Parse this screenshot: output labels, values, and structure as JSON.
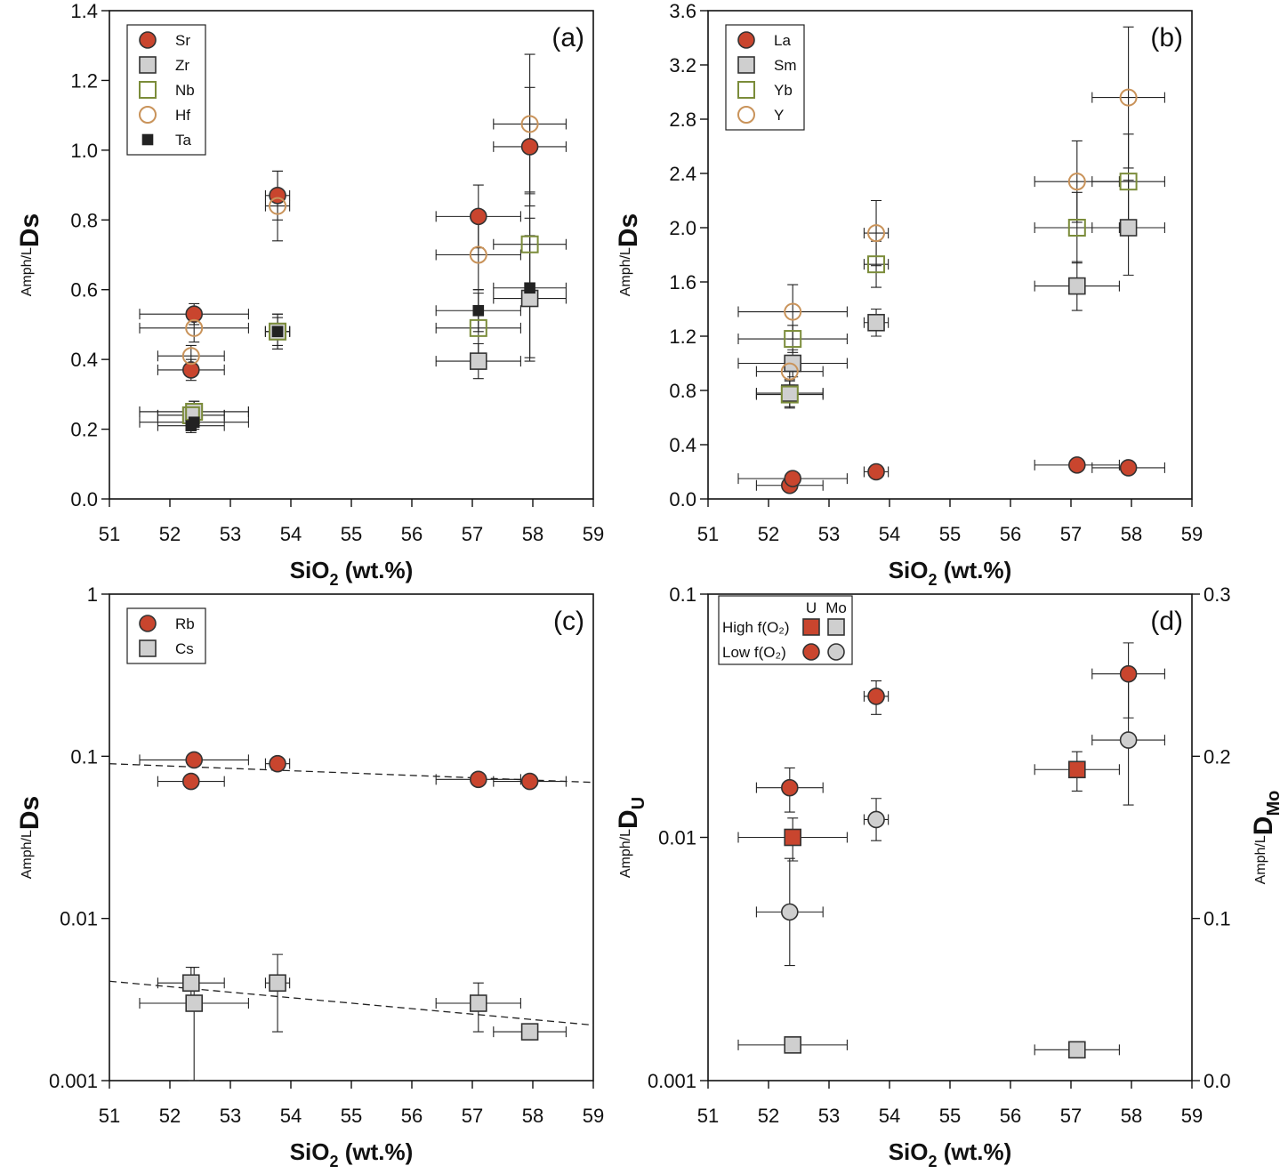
{
  "chart_data": [
    {
      "type": "scatter",
      "label": "(a)",
      "xlabel": [
        "SiO",
        "2",
        " (wt.%)"
      ],
      "ylabel": [
        "Amph/L",
        "Ds"
      ],
      "xlim": [
        51,
        59
      ],
      "xticks": [
        51,
        52,
        53,
        54,
        55,
        56,
        57,
        58,
        59
      ],
      "ylim": [
        0,
        1.4
      ],
      "yticks": [
        {
          "value": 0,
          "label": "0.0"
        },
        0.2,
        0.4,
        0.6,
        0.8,
        {
          "value": 1,
          "label": "1.0"
        },
        1.2,
        1.4
      ],
      "legend": "upper left",
      "series": [
        {
          "name": "Sr",
          "marker": "circle",
          "filled": true,
          "color": "#c9452e",
          "edgecolor": "#333333",
          "x": [
            52.35,
            52.4,
            53.78,
            57.1,
            57.95
          ],
          "values": [
            0.37,
            0.53,
            0.87,
            0.81,
            1.01
          ],
          "xerr": [
            0.55,
            0.9,
            0.2,
            0.7,
            0.6
          ],
          "yerr": [
            0.03,
            0.03,
            0.07,
            0.09,
            0.17
          ]
        },
        {
          "name": "Zr",
          "marker": "square",
          "filled": true,
          "color": "#cfcfcf",
          "edgecolor": "#333333",
          "x": [
            52.35,
            52.4,
            53.78,
            57.1,
            57.95
          ],
          "values": [
            0.24,
            0.25,
            0.48,
            0.395,
            0.575
          ],
          "xerr": [
            0.55,
            0.9,
            0.2,
            0.7,
            0.6
          ],
          "yerr": [
            0.03,
            0.03,
            0.05,
            0.05,
            0.18
          ]
        },
        {
          "name": "Nb",
          "marker": "square",
          "filled": false,
          "color": "#7b8c3a",
          "x": [
            52.35,
            52.4,
            53.78,
            57.1,
            57.95
          ],
          "values": [
            0.24,
            0.25,
            0.48,
            0.49,
            0.73
          ],
          "xerr": [
            0.55,
            0.9,
            0.2,
            0.7,
            0.6
          ],
          "yerr": [
            0.03,
            0.03,
            0.05,
            0.1,
            0.15
          ]
        },
        {
          "name": "Hf",
          "marker": "circle",
          "filled": false,
          "color": "#c9935a",
          "x": [
            52.35,
            52.4,
            53.78,
            57.1,
            57.95
          ],
          "values": [
            0.41,
            0.49,
            0.84,
            0.7,
            1.075
          ],
          "xerr": [
            0.55,
            0.9,
            0.2,
            0.7,
            0.6
          ],
          "yerr": [
            0.03,
            0.04,
            0.1,
            0.1,
            0.2
          ]
        },
        {
          "name": "Ta",
          "marker": "small-square",
          "filled": true,
          "color": "#222222",
          "edgecolor": "#222222",
          "x": [
            52.35,
            52.4,
            53.78,
            57.1,
            57.95
          ],
          "values": [
            0.21,
            0.22,
            0.48,
            0.54,
            0.605
          ],
          "xerr": [
            0.55,
            0.9,
            0.2,
            0.7,
            0.6
          ],
          "yerr": [
            0.02,
            0.02,
            0.04,
            0.06,
            0.2
          ]
        }
      ]
    },
    {
      "type": "scatter",
      "label": "(b)",
      "xlabel": [
        "SiO",
        "2",
        " (wt.%)"
      ],
      "ylabel": [
        "Amph/L",
        "Ds"
      ],
      "xlim": [
        51,
        59
      ],
      "xticks": [
        51,
        52,
        53,
        54,
        55,
        56,
        57,
        58,
        59
      ],
      "ylim": [
        0,
        3.6
      ],
      "yticks": [
        {
          "value": 0,
          "label": "0.0"
        },
        0.4,
        0.8,
        1.2,
        1.6,
        {
          "value": 2,
          "label": "2.0"
        },
        2.4,
        2.8,
        3.2,
        3.6
      ],
      "legend": "upper left",
      "series": [
        {
          "name": "La",
          "marker": "circle",
          "filled": true,
          "color": "#c9452e",
          "edgecolor": "#333333",
          "x": [
            52.35,
            52.4,
            53.78,
            57.1,
            57.95
          ],
          "values": [
            0.1,
            0.15,
            0.2,
            0.25,
            0.23
          ],
          "xerr": [
            0.55,
            0.9,
            0.2,
            0.7,
            0.6
          ],
          "yerr": [
            0.02,
            0.02,
            0.03,
            0.03,
            0.03
          ]
        },
        {
          "name": "Sm",
          "marker": "square",
          "filled": true,
          "color": "#cfcfcf",
          "edgecolor": "#333333",
          "x": [
            52.35,
            52.4,
            53.78,
            57.1,
            57.95
          ],
          "values": [
            0.78,
            1.0,
            1.3,
            1.57,
            2.0
          ],
          "xerr": [
            0.55,
            0.9,
            0.2,
            0.7,
            0.6
          ],
          "yerr": [
            0.1,
            0.1,
            0.1,
            0.18,
            0.35
          ]
        },
        {
          "name": "Yb",
          "marker": "square",
          "filled": false,
          "color": "#7b8c3a",
          "x": [
            52.35,
            52.4,
            53.78,
            57.1,
            57.95
          ],
          "values": [
            0.77,
            1.18,
            1.73,
            2.0,
            2.34
          ],
          "xerr": [
            0.55,
            0.9,
            0.2,
            0.7,
            0.6
          ],
          "yerr": [
            0.1,
            0.1,
            0.17,
            0.26,
            0.35
          ]
        },
        {
          "name": "Y",
          "marker": "circle",
          "filled": false,
          "color": "#c9935a",
          "x": [
            52.35,
            52.4,
            53.78,
            57.1,
            57.95
          ],
          "values": [
            0.94,
            1.38,
            1.96,
            2.34,
            2.96
          ],
          "xerr": [
            0.55,
            0.9,
            0.2,
            0.7,
            0.6
          ],
          "yerr": [
            0.1,
            0.2,
            0.24,
            0.3,
            0.52
          ]
        }
      ]
    },
    {
      "type": "scatter",
      "label": "(c)",
      "xlabel": [
        "SiO",
        "2",
        " (wt.%)"
      ],
      "ylabel": [
        "Amph/L",
        "Ds"
      ],
      "xlim": [
        51,
        59
      ],
      "xticks": [
        51,
        52,
        53,
        54,
        55,
        56,
        57,
        58,
        59
      ],
      "ylim": [
        0.001,
        1
      ],
      "yticks": [
        0.001,
        0.01,
        0.1,
        1
      ],
      "log_y": true,
      "legend": "upper left",
      "trendlines": [
        {
          "x": [
            51,
            59
          ],
          "y": [
            0.09,
            0.069
          ]
        },
        {
          "x": [
            51,
            59
          ],
          "y": [
            0.0041,
            0.0022
          ]
        }
      ],
      "series": [
        {
          "name": "Rb",
          "marker": "circle",
          "filled": true,
          "color": "#c9452e",
          "edgecolor": "#333333",
          "x": [
            52.35,
            52.4,
            53.78,
            57.1,
            57.95
          ],
          "values": [
            0.07,
            0.095,
            0.09,
            0.072,
            0.07
          ],
          "xerr": [
            0.55,
            0.9,
            0.2,
            0.7,
            0.6
          ]
        },
        {
          "name": "Cs",
          "marker": "square",
          "filled": true,
          "color": "#cfcfcf",
          "edgecolor": "#333333",
          "x": [
            52.35,
            52.4,
            53.78,
            57.1,
            57.95
          ],
          "values": [
            0.004,
            0.003,
            0.004,
            0.003,
            0.002
          ],
          "xerr": [
            0.55,
            0.9,
            0.2,
            0.7,
            0.6
          ],
          "yerr": [
            0.001,
            0.002,
            0.002,
            0.001,
            null
          ]
        }
      ]
    },
    {
      "type": "scatter",
      "label": "(d)",
      "xlabel": [
        "SiO",
        "2",
        " (wt.%)"
      ],
      "ylabel": [
        "Amph/L",
        "D",
        "U"
      ],
      "y2label": [
        "Amph/L",
        "D",
        "Mo"
      ],
      "xlim": [
        51,
        59
      ],
      "xticks": [
        51,
        52,
        53,
        54,
        55,
        56,
        57,
        58,
        59
      ],
      "ylim": [
        0.001,
        0.1
      ],
      "yticks": [
        0.001,
        0.01,
        0.1
      ],
      "log_y": true,
      "y2lim": [
        0,
        0.3
      ],
      "y2ticks": [
        {
          "value": 0,
          "label": "0.0"
        },
        0.1,
        0.2,
        0.3
      ],
      "legend": {
        "columns": [
          "U",
          "Mo"
        ],
        "rows": [
          "High f(O₂)",
          "Low f(O₂)"
        ]
      },
      "series": [
        {
          "marker": "square",
          "filled": true,
          "color": "#c9452e",
          "edgecolor": "#333333",
          "x": [
            52.4,
            57.1
          ],
          "values": [
            0.01,
            0.019
          ],
          "xerr": [
            0.9,
            0.7
          ],
          "yerr": [
            0.002,
            0.0035
          ]
        },
        {
          "marker": "square",
          "filled": true,
          "color": "#cfcfcf",
          "edgecolor": "#333333",
          "axis": "y2",
          "x": [
            52.4,
            57.1
          ],
          "values": [
            0.022,
            0.019
          ],
          "xerr": [
            0.9,
            0.7
          ],
          "yerr": [
            0.002,
            0.002
          ]
        },
        {
          "marker": "circle",
          "filled": true,
          "color": "#c9452e",
          "edgecolor": "#333333",
          "x": [
            52.35,
            53.78,
            57.95
          ],
          "values": [
            0.016,
            0.038,
            0.047
          ],
          "xerr": [
            0.55,
            0.2,
            0.6
          ],
          "yerr": [
            0.0033,
            0.006,
            0.016
          ]
        },
        {
          "marker": "circle",
          "filled": true,
          "color": "#cfcfcf",
          "edgecolor": "#333333",
          "axis": "y2",
          "x": [
            52.35,
            53.78,
            57.95
          ],
          "values": [
            0.104,
            0.161,
            0.21
          ],
          "xerr": [
            0.55,
            0.2,
            0.6
          ],
          "yerr": [
            0.033,
            0.013,
            0.04
          ]
        }
      ]
    }
  ]
}
